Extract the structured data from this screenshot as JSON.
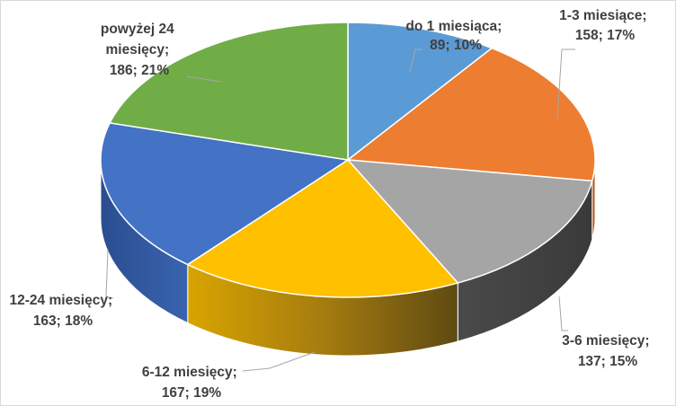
{
  "chart_data": {
    "type": "pie",
    "title": "",
    "style": "3d-exploded-none",
    "legend": "none",
    "categories": [
      "do 1 miesiąca",
      "1-3 miesiące",
      "3-6 miesięcy",
      "6-12 miesięcy",
      "12-24 miesięcy",
      "powyżej 24 miesięcy"
    ],
    "values": [
      89,
      158,
      137,
      167,
      163,
      186
    ],
    "percents": [
      10,
      17,
      15,
      19,
      18,
      21
    ],
    "colors": [
      "#5b9bd5",
      "#ed7d31",
      "#a5a5a5",
      "#ffc000",
      "#4472c4",
      "#70ad47"
    ],
    "labels": [
      {
        "line1": "do 1 miesiąca;",
        "line2": "89; 10%"
      },
      {
        "line1": "1-3 miesiące;",
        "line2": "158; 17%"
      },
      {
        "line1": "3-6 miesięcy;",
        "line2": "137; 15%"
      },
      {
        "line1": "6-12 miesięcy;",
        "line2": "167; 19%"
      },
      {
        "line1": "12-24 miesięcy;",
        "line2": "163; 18%"
      },
      {
        "line1": "powyżej 24",
        "line2": "miesięcy;",
        "line3": "186; 21%"
      }
    ]
  }
}
